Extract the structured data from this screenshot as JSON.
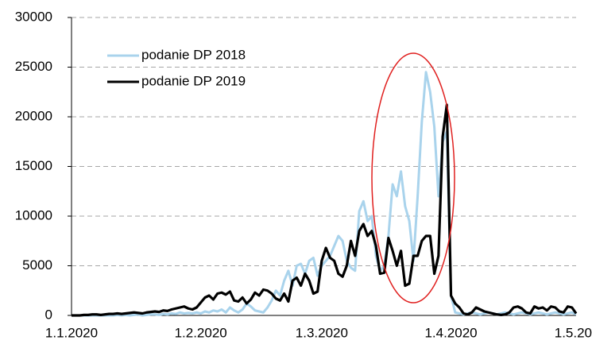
{
  "chart_data": {
    "type": "line",
    "categories": [
      "1.1.2020",
      null,
      null,
      null,
      null,
      null,
      null,
      null,
      null,
      null,
      null,
      null,
      null,
      null,
      null,
      null,
      null,
      null,
      null,
      null,
      null,
      null,
      null,
      null,
      null,
      null,
      null,
      null,
      null,
      null,
      null,
      "1.2.2020",
      null,
      null,
      null,
      null,
      null,
      null,
      null,
      null,
      null,
      null,
      null,
      null,
      null,
      null,
      null,
      null,
      null,
      null,
      null,
      null,
      null,
      null,
      null,
      null,
      null,
      null,
      null,
      null,
      "1.3.2020",
      null,
      null,
      null,
      null,
      null,
      null,
      null,
      null,
      null,
      null,
      null,
      null,
      null,
      null,
      null,
      null,
      null,
      null,
      null,
      null,
      null,
      null,
      null,
      null,
      null,
      null,
      null,
      null,
      null,
      null,
      "1.4.2020",
      null,
      null,
      null,
      null,
      null,
      null,
      null,
      null,
      null,
      null,
      null,
      null,
      null,
      null,
      null,
      null,
      null,
      null,
      null,
      null,
      null,
      null,
      null,
      null,
      null,
      null,
      null,
      null,
      null,
      "1.5.20"
    ],
    "series": [
      {
        "name": "podanie DP 2018",
        "color": "#a9d3ec",
        "values": [
          0,
          0,
          0,
          0,
          0,
          0,
          0,
          0,
          0,
          0,
          0,
          50,
          0,
          50,
          0,
          50,
          100,
          0,
          50,
          100,
          100,
          50,
          150,
          100,
          200,
          150,
          300,
          200,
          250,
          200,
          300,
          200,
          400,
          300,
          500,
          400,
          600,
          300,
          800,
          500,
          300,
          600,
          1200,
          900,
          500,
          400,
          300,
          800,
          1500,
          2500,
          2000,
          3500,
          4500,
          3000,
          5000,
          5200,
          4200,
          5500,
          5800,
          4000,
          5000,
          5500,
          6000,
          7000,
          8000,
          7500,
          5500,
          4800,
          4500,
          10500,
          11500,
          9500,
          10000,
          6000,
          4500,
          5000,
          8000,
          13200,
          12000,
          14500,
          11000,
          9500,
          5500,
          12000,
          19500,
          24500,
          22500,
          19000,
          12000,
          17500,
          18500,
          2000,
          300,
          200,
          100,
          200,
          300,
          200,
          100,
          200,
          300,
          200,
          100,
          200,
          300,
          200,
          100,
          200,
          300,
          200,
          100,
          200,
          300,
          200,
          100,
          200,
          300,
          200,
          100,
          200,
          300,
          100
        ]
      },
      {
        "name": "podanie DP 2019",
        "color": "#000000",
        "values": [
          0,
          0,
          0,
          50,
          50,
          100,
          100,
          50,
          100,
          150,
          150,
          200,
          150,
          200,
          250,
          300,
          250,
          200,
          300,
          350,
          400,
          350,
          500,
          450,
          600,
          700,
          800,
          900,
          700,
          600,
          800,
          1300,
          1800,
          2000,
          1600,
          2200,
          2300,
          2100,
          2400,
          1500,
          1400,
          1800,
          1200,
          1600,
          2300,
          2000,
          2600,
          2500,
          2200,
          1700,
          1500,
          2200,
          1400,
          3500,
          3800,
          3000,
          4200,
          3500,
          2200,
          2400,
          5500,
          6800,
          5800,
          5500,
          4200,
          3900,
          5000,
          7500,
          6000,
          8500,
          9200,
          8000,
          8500,
          7000,
          4200,
          4300,
          7800,
          6500,
          5000,
          6500,
          3000,
          3200,
          6000,
          6000,
          7500,
          8000,
          8000,
          4200,
          6000,
          18000,
          21200,
          2000,
          1200,
          800,
          200,
          100,
          300,
          800,
          600,
          400,
          300,
          200,
          100,
          50,
          100,
          300,
          800,
          900,
          700,
          300,
          200,
          900,
          700,
          800,
          500,
          900,
          800,
          400,
          300,
          900,
          800,
          200
        ]
      }
    ],
    "ylim": [
      0,
      30000
    ],
    "yticks": [
      0,
      5000,
      10000,
      15000,
      20000,
      25000,
      30000
    ],
    "grid": true,
    "legend": "upper left"
  }
}
